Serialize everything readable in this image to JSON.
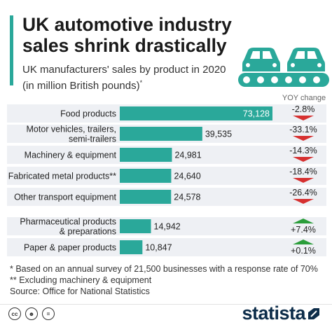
{
  "header": {
    "title": "UK automotive industry sales shrink drastically",
    "subtitle": "UK manufacturers' sales by product in 2020 (in million British pounds)",
    "subtitle_mark": "*",
    "yoy_header": "YOY change"
  },
  "chart_data": {
    "type": "bar",
    "orientation": "horizontal",
    "categories": [
      "Food products",
      "Motor vehicles, trailers, semi-trailers",
      "Machinery & equipment",
      "Fabricated metal products**",
      "Other transport equipment",
      "Pharmaceutical products & preparations",
      "Paper & paper products"
    ],
    "values": [
      73128,
      39535,
      24981,
      24640,
      24578,
      14942,
      10847
    ],
    "value_labels": [
      "73,128",
      "39,535",
      "24,981",
      "24,640",
      "24,578",
      "14,942",
      "10,847"
    ],
    "yoy_change": [
      "-2.8%",
      "-33.1%",
      "-14.3%",
      "-18.4%",
      "-26.4%",
      "+7.4%",
      "+0.1%"
    ],
    "yoy_direction": [
      "down",
      "down",
      "down",
      "down",
      "down",
      "up",
      "up"
    ],
    "xlim": [
      0,
      73128
    ]
  },
  "colors": {
    "accent": "#2aa89a",
    "bar": "#2aa89a",
    "row_background": "#eef0f4",
    "down": "#d63030",
    "up": "#2a9d3a",
    "brand": "#0d2d4a"
  },
  "footnotes": [
    "*   Based on an annual survey of 21,500 businesses with a response rate of 70%",
    "** Excluding machinery & equipment",
    "Source: Office for National Statistics"
  ],
  "footer": {
    "license_icons": [
      "cc-icon",
      "attribution-icon",
      "equals-icon"
    ],
    "brand": "statista"
  }
}
